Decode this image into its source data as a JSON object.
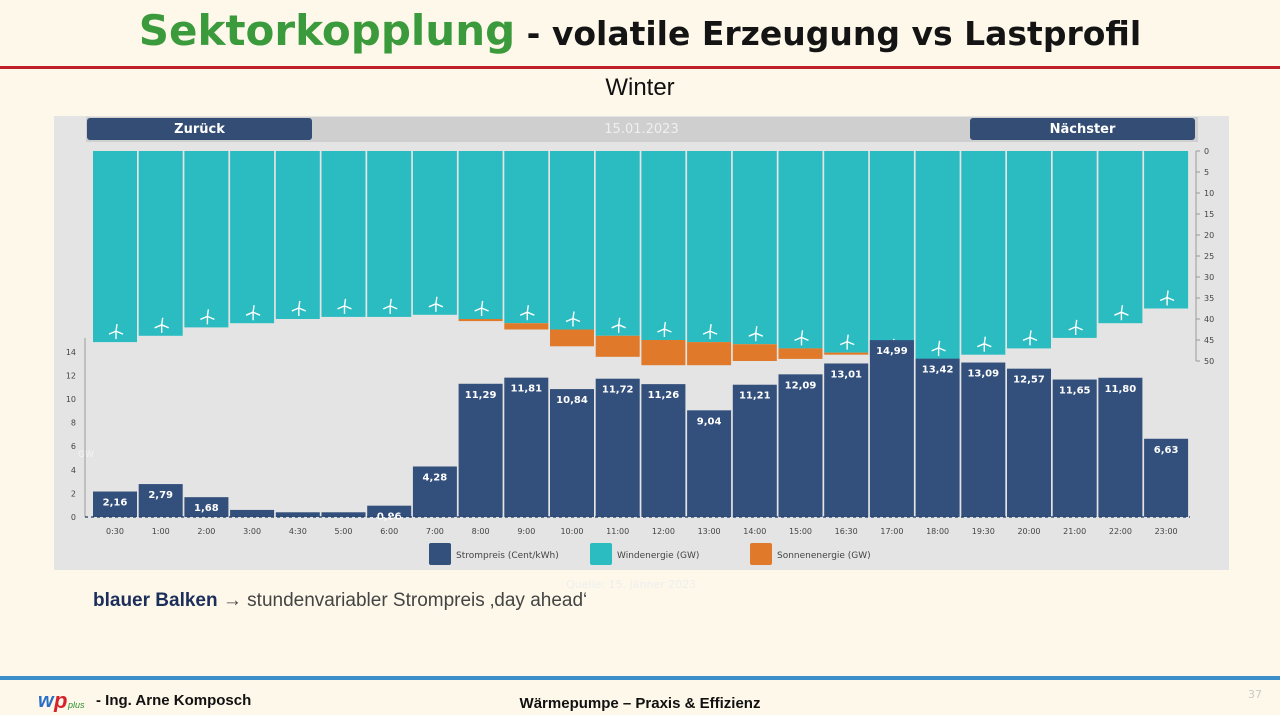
{
  "slide": {
    "title_green": "Sektorkopplung",
    "title_rest": " - volatile Erzeugung vs Lastprofil",
    "subtitle": "Winter",
    "caption_bold": "blauer Balken",
    "caption_rest": " → stundenvariabler Strompreis ‚day ahead‘",
    "footer_author": "- Ing. Arne Komposch",
    "footer_center": "Wärmepumpe – Praxis & Effizienz",
    "page_number": "37",
    "ghost_text": "Quelle: 15. Jänner 2023"
  },
  "nav": {
    "back_label": "Zurück",
    "next_label": "Nächster",
    "date": "15.01.2023"
  },
  "colors": {
    "accent_green": "#3b9a3b",
    "red_rule": "#c0202a",
    "blue_rule": "#3a8ec9",
    "price_bar": "#334f7b",
    "wind_bar": "#2bbcc1",
    "solar_bar": "#e07a2a"
  },
  "chart_data": {
    "type": "bar",
    "x": [
      "0:30",
      "1:00",
      "2:00",
      "3:00",
      "4:30",
      "5:00",
      "6:00",
      "7:00",
      "8:00",
      "9:00",
      "10:00",
      "11:00",
      "12:00",
      "13:00",
      "14:00",
      "15:00",
      "16:30",
      "17:00",
      "18:00",
      "19:30",
      "20:00",
      "21:00",
      "22:00",
      "23:00"
    ],
    "series": [
      {
        "name": "Strompreis (Cent/kWh)",
        "chart": "price",
        "values": [
          2.16,
          2.79,
          1.68,
          0.6,
          0.4,
          0.4,
          0.96,
          4.28,
          11.29,
          11.81,
          10.84,
          11.72,
          11.26,
          9.04,
          11.21,
          12.09,
          13.01,
          14.99,
          13.42,
          13.09,
          12.57,
          11.65,
          11.8,
          6.63
        ],
        "labels": [
          "2,16",
          "2,79",
          "1,68",
          "",
          "",
          "",
          "0,96",
          "4,28",
          "11,29",
          "11,81",
          "10,84",
          "11,72",
          "11,26",
          "9,04",
          "11,21",
          "12,09",
          "13,01",
          "14,99",
          "13,42",
          "13,09",
          "12,57",
          "11,65",
          "11,80",
          "6,63"
        ]
      },
      {
        "name": "Windenergie (GW)",
        "chart": "generation",
        "values": [
          45.5,
          44,
          42,
          41,
          40,
          39.5,
          39.5,
          39,
          40,
          41,
          42.5,
          44,
          45,
          45.5,
          46,
          47,
          48,
          49,
          49.5,
          48.5,
          47,
          44.5,
          41,
          37.5
        ]
      },
      {
        "name": "Sonnenenergie (GW)",
        "chart": "generation",
        "values": [
          0,
          0,
          0,
          0,
          0,
          0,
          0,
          0,
          0.5,
          1.5,
          4,
          5,
          6,
          5.5,
          4,
          2.5,
          0.5,
          0,
          0,
          0,
          0,
          0,
          0,
          0
        ]
      }
    ],
    "price_axis": {
      "ticks": [
        "0",
        "2",
        "4",
        "6",
        "8",
        "10",
        "12",
        "14"
      ],
      "ylim": [
        0,
        15.5
      ]
    },
    "generation_axis": {
      "ticks": [
        "0",
        "5",
        "10",
        "15",
        "20",
        "25",
        "30",
        "35",
        "40",
        "45",
        "50"
      ],
      "ylim": [
        0,
        50
      ],
      "inverted": true
    },
    "legend": [
      {
        "label": "Strompreis (Cent/kWh)",
        "color": "#334f7b"
      },
      {
        "label": "Windenergie (GW)",
        "color": "#2bbcc1"
      },
      {
        "label": "Sonnenenergie (GW)",
        "color": "#e07a2a"
      }
    ],
    "legend_position": "bottom"
  }
}
